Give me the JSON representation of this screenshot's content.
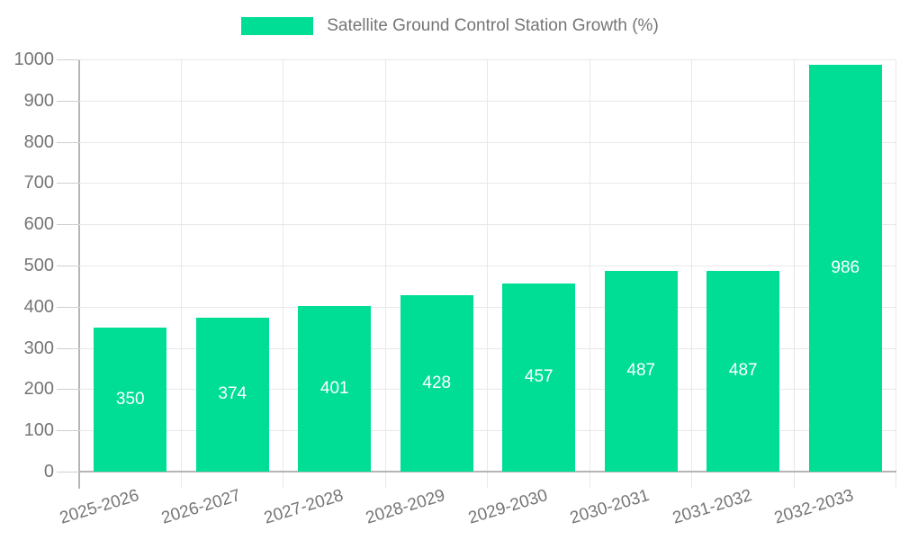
{
  "legend": {
    "label": "Satellite Ground Control Station Growth (%)"
  },
  "colors": {
    "bar": "#00DE96",
    "grid": "#E8E8E8",
    "axis": "#B5B5B5",
    "tick": "#CFCFCF",
    "axis_text": "#757575",
    "value_text": "#FFFFFF",
    "background": "#FFFFFF"
  },
  "chart_data": {
    "type": "bar",
    "title": "Satellite Ground Control Station Growth (%)",
    "categories": [
      "2025-2026",
      "2026-2027",
      "2027-2028",
      "2028-2029",
      "2029-2030",
      "2030-2031",
      "2031-2032",
      "2032-2033"
    ],
    "values": [
      350,
      374,
      401,
      428,
      457,
      487,
      487,
      986
    ],
    "bar_labels": [
      350,
      374,
      401,
      428,
      457,
      487,
      487,
      986
    ],
    "xlabel": "",
    "ylabel": "",
    "ylim": [
      0,
      1000
    ],
    "ytick_step": 100,
    "grid": "both",
    "legend_position": "top",
    "bar_label_position": "inside-center",
    "x_label_rotation_deg": -17
  }
}
